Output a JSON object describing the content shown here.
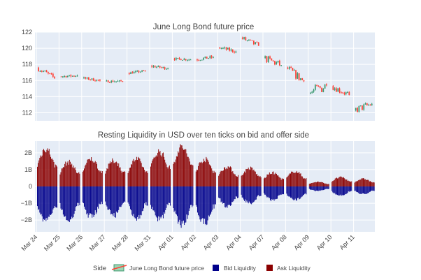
{
  "colors": {
    "plot_bg": "#e5ecf6",
    "grid": "#ffffff",
    "increasing": "#3d9970",
    "decreasing": "#ff4136",
    "bid": "#00008b",
    "ask": "#8b0000"
  },
  "chart_data": [
    {
      "type": "candlestick",
      "title": "June Long Bond future price",
      "ylim": [
        111,
        122
      ],
      "y_ticks": [
        112,
        114,
        116,
        118,
        120,
        122
      ],
      "x": [
        "Mar 24",
        "Mar 25",
        "Mar 26",
        "Mar 27",
        "Mar 28",
        "Mar 31",
        "Apr 01",
        "Apr 02",
        "Apr 03",
        "Apr 04",
        "Apr 07",
        "Apr 08",
        "Apr 09",
        "Apr 10",
        "Apr 11"
      ],
      "sessions": [
        {
          "date": "Mar 24",
          "open": 117.6,
          "close": 116.3,
          "high": 117.7,
          "low": 116.2
        },
        {
          "date": "Mar 25",
          "open": 116.5,
          "close": 116.6,
          "high": 116.9,
          "low": 116.3
        },
        {
          "date": "Mar 26",
          "open": 116.3,
          "close": 116.0,
          "high": 116.5,
          "low": 115.8
        },
        {
          "date": "Mar 27",
          "open": 115.9,
          "close": 115.9,
          "high": 116.1,
          "low": 115.5
        },
        {
          "date": "Mar 28",
          "open": 116.9,
          "close": 117.2,
          "high": 117.3,
          "low": 116.7
        },
        {
          "date": "Mar 31",
          "open": 117.8,
          "close": 117.5,
          "high": 118.0,
          "low": 117.3
        },
        {
          "date": "Apr 01",
          "open": 118.7,
          "close": 118.6,
          "high": 118.9,
          "low": 118.3
        },
        {
          "date": "Apr 02",
          "open": 118.6,
          "close": 118.9,
          "high": 119.2,
          "low": 118.3
        },
        {
          "date": "Apr 03",
          "open": 120.1,
          "close": 119.6,
          "high": 120.3,
          "low": 119.3
        },
        {
          "date": "Apr 04",
          "open": 121.3,
          "close": 120.3,
          "high": 121.6,
          "low": 120.1
        },
        {
          "date": "Apr 07",
          "open": 118.8,
          "close": 117.9,
          "high": 119.2,
          "low": 117.1
        },
        {
          "date": "Apr 08",
          "open": 117.6,
          "close": 115.9,
          "high": 117.9,
          "low": 115.6
        },
        {
          "date": "Apr 09",
          "open": 114.4,
          "close": 115.4,
          "high": 116.1,
          "low": 112.8
        },
        {
          "date": "Apr 10",
          "open": 115.3,
          "close": 114.2,
          "high": 115.6,
          "low": 113.8
        },
        {
          "date": "Apr 11",
          "open": 112.3,
          "close": 113.1,
          "high": 113.9,
          "low": 111.8
        }
      ]
    },
    {
      "type": "bar",
      "title": "Resting Liquidity in USD over ten ticks on bid and offer side",
      "ylim": [
        -2.7,
        2.7
      ],
      "y_ticks": [
        2,
        1,
        0,
        -1,
        -2
      ],
      "y_tick_labels": [
        "2B",
        "1B",
        "0",
        "−1B",
        "−2B"
      ],
      "x": [
        "Mar 24",
        "Mar 25",
        "Mar 26",
        "Mar 27",
        "Mar 28",
        "Mar 31",
        "Apr 01",
        "Apr 02",
        "Apr 03",
        "Apr 04",
        "Apr 07",
        "Apr 08",
        "Apr 09",
        "Apr 10",
        "Apr 11"
      ],
      "series": [
        {
          "name": "Bid Liquidity",
          "session_peak": [
            -2.3,
            -2.2,
            -2.0,
            -1.9,
            -2.1,
            -2.2,
            -2.5,
            -2.4,
            -1.3,
            -1.1,
            -0.9,
            -0.9,
            -0.3,
            -0.6,
            -0.5
          ]
        },
        {
          "name": "Ask Liquidity",
          "session_peak": [
            2.5,
            1.6,
            1.8,
            1.7,
            1.8,
            2.3,
            2.6,
            1.8,
            1.3,
            1.2,
            0.9,
            1.0,
            0.3,
            0.6,
            0.5
          ]
        }
      ]
    }
  ],
  "legend": {
    "title": "Side",
    "items": [
      {
        "label": "June Long Bond future price"
      },
      {
        "label": "Bid Liquidity"
      },
      {
        "label": "Ask Liquidity"
      }
    ]
  }
}
